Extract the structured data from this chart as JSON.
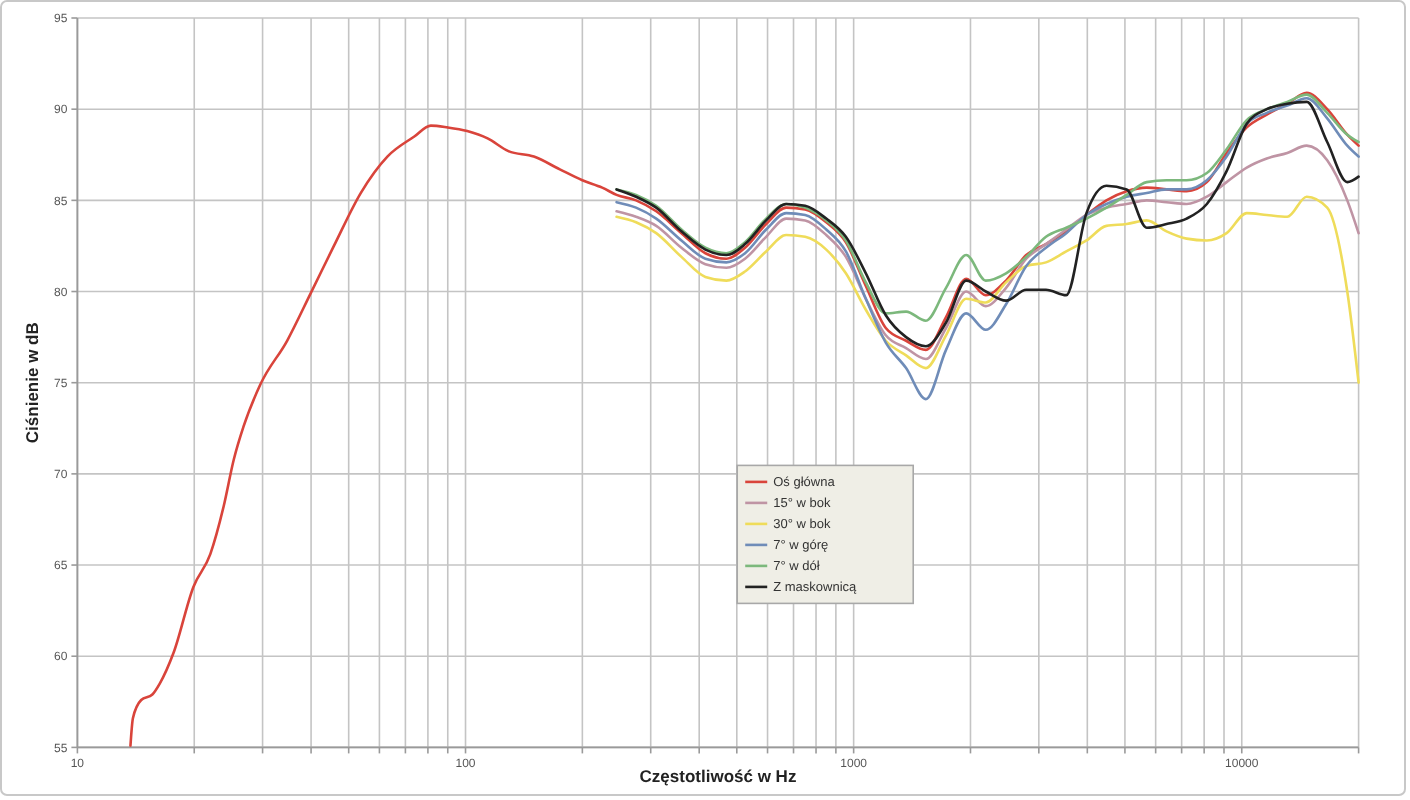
{
  "chart_data": {
    "type": "line",
    "xlabel": "Częstotliwość w Hz",
    "ylabel": "Ciśnienie w dB",
    "log": "x",
    "grid": true,
    "legend": "bottom",
    "xlim": [
      10,
      20000
    ],
    "ylim": [
      55,
      95
    ],
    "xticks": [
      10,
      {
        "value": 20,
        "label": null
      },
      {
        "value": 30,
        "label": null
      },
      {
        "value": 40,
        "label": null
      },
      {
        "value": 50,
        "label": null
      },
      {
        "value": 60,
        "label": null
      },
      {
        "value": 70,
        "label": null
      },
      {
        "value": 80,
        "label": null
      },
      {
        "value": 90,
        "label": null
      },
      100,
      {
        "value": 200,
        "label": null
      },
      {
        "value": 300,
        "label": null
      },
      {
        "value": 400,
        "label": null
      },
      {
        "value": 500,
        "label": null
      },
      {
        "value": 600,
        "label": null
      },
      {
        "value": 700,
        "label": null
      },
      {
        "value": 800,
        "label": null
      },
      {
        "value": 900,
        "label": null
      },
      1000,
      {
        "value": 2000,
        "label": null
      },
      {
        "value": 3000,
        "label": null
      },
      {
        "value": 4000,
        "label": null
      },
      {
        "value": 5000,
        "label": null
      },
      {
        "value": 6000,
        "label": null
      },
      {
        "value": 7000,
        "label": null
      },
      {
        "value": 8000,
        "label": null
      },
      {
        "value": 9000,
        "label": null
      },
      10000,
      {
        "value": 20000,
        "label": null
      }
    ],
    "yticks": [
      55,
      60,
      65,
      70,
      75,
      80,
      85,
      90,
      95
    ],
    "x": [
      245,
      275,
      310,
      360,
      415,
      470,
      525,
      595,
      670,
      750,
      850,
      955,
      1075,
      1210,
      1365,
      1535,
      1730,
      1950,
      2190,
      2470,
      2785,
      3130,
      3530,
      3980,
      4480,
      5050,
      5690,
      6400,
      7210,
      8130,
      9140,
      10300,
      11600,
      13100,
      14700,
      16600,
      18700,
      20000
    ],
    "series": [
      {
        "name": "Oś główna",
        "color": "#d9443b",
        "x": [
          13.7,
          13.9,
          14.6,
          15.6,
          16.3,
          17.7,
          19.9,
          22,
          23.8,
          25.3,
          26.8,
          29.6,
          34.7,
          39.9,
          45.8,
          53.7,
          62.9,
          73.8,
          81.4,
          89.9,
          101,
          114,
          129,
          150,
          175,
          200,
          225,
          245,
          275,
          310,
          360,
          415,
          470,
          525,
          595,
          670,
          750,
          850,
          955,
          1075,
          1210,
          1365,
          1535,
          1730,
          1950,
          2190,
          2470,
          2785,
          3130,
          3530,
          3980,
          4480,
          5050,
          5690,
          6400,
          7210,
          8130,
          9140,
          10300,
          11600,
          13100,
          14700,
          16600,
          18700,
          20000
        ],
        "values": [
          55.1,
          56.6,
          57.6,
          57.9,
          58.5,
          60.2,
          63.8,
          65.6,
          68.2,
          70.8,
          72.6,
          74.9,
          77.3,
          79.9,
          82.5,
          85.4,
          87.4,
          88.5,
          89.1,
          89.0,
          88.8,
          88.4,
          87.7,
          87.4,
          86.7,
          86.1,
          85.7,
          85.3,
          85.0,
          84.4,
          83.2,
          82.1,
          81.8,
          82.4,
          83.7,
          84.6,
          84.5,
          83.8,
          82.7,
          80.3,
          78.0,
          77.3,
          76.8,
          78.6,
          80.7,
          79.8,
          80.6,
          82.0,
          82.6,
          83.3,
          84.2,
          85.0,
          85.5,
          85.7,
          85.6,
          85.5,
          86.0,
          87.6,
          89.0,
          89.7,
          90.3,
          90.9,
          90.0,
          88.6,
          88.0
        ]
      },
      {
        "name": "15° w bok",
        "color": "#bf94a4",
        "values": [
          84.4,
          84.1,
          83.6,
          82.4,
          81.5,
          81.3,
          81.8,
          83.0,
          84.0,
          83.9,
          83.1,
          81.9,
          79.6,
          77.6,
          76.9,
          76.3,
          78.0,
          80.0,
          79.2,
          80.2,
          81.8,
          82.6,
          83.4,
          84.2,
          84.6,
          84.8,
          85.0,
          84.9,
          84.8,
          85.2,
          86.0,
          86.8,
          87.3,
          87.6,
          88.0,
          87.2,
          85.0,
          83.2
        ]
      },
      {
        "name": "30° w bok",
        "color": "#efdc5a",
        "values": [
          84.1,
          83.8,
          83.2,
          81.9,
          80.8,
          80.6,
          81.1,
          82.2,
          83.1,
          83.0,
          82.3,
          81.0,
          79.0,
          77.3,
          76.5,
          75.8,
          77.6,
          79.6,
          79.4,
          80.5,
          81.4,
          81.6,
          82.2,
          82.8,
          83.6,
          83.7,
          83.9,
          83.3,
          82.9,
          82.8,
          83.2,
          84.3,
          84.2,
          84.1,
          85.2,
          84.6,
          80.0,
          75.0
        ]
      },
      {
        "name": "7° w górę",
        "color": "#6f8cb8",
        "values": [
          84.9,
          84.6,
          84.0,
          82.8,
          81.8,
          81.6,
          82.1,
          83.4,
          84.3,
          84.2,
          83.4,
          82.2,
          79.6,
          77.2,
          75.8,
          74.1,
          76.8,
          78.8,
          77.9,
          79.3,
          81.4,
          82.4,
          83.2,
          84.2,
          84.8,
          85.2,
          85.4,
          85.6,
          85.6,
          86.1,
          87.4,
          89.2,
          89.8,
          90.2,
          90.6,
          89.5,
          88.0,
          87.4
        ]
      },
      {
        "name": "7° w dół",
        "color": "#7cb87c",
        "values": [
          85.6,
          85.3,
          84.7,
          83.4,
          82.4,
          82.1,
          82.7,
          84.0,
          84.8,
          84.6,
          83.9,
          82.8,
          80.5,
          78.8,
          78.9,
          78.4,
          80.2,
          82.0,
          80.6,
          81.0,
          81.9,
          83.0,
          83.5,
          84.0,
          84.6,
          85.3,
          86.0,
          86.1,
          86.1,
          86.5,
          87.8,
          89.4,
          90.0,
          90.4,
          90.8,
          89.8,
          88.6,
          88.2
        ]
      },
      {
        "name": "Z maskownicą",
        "color": "#222222",
        "values": [
          85.6,
          85.2,
          84.6,
          83.3,
          82.3,
          82.0,
          82.6,
          83.9,
          84.8,
          84.7,
          84.0,
          83.0,
          81.0,
          78.7,
          77.5,
          77.0,
          78.3,
          80.6,
          80.0,
          79.5,
          80.1,
          80.1,
          79.8,
          84.3,
          85.8,
          85.6,
          83.5,
          83.7,
          84.0,
          84.8,
          86.6,
          89.2,
          90.0,
          90.3,
          90.4,
          88.2,
          86.0,
          86.3
        ]
      }
    ]
  }
}
